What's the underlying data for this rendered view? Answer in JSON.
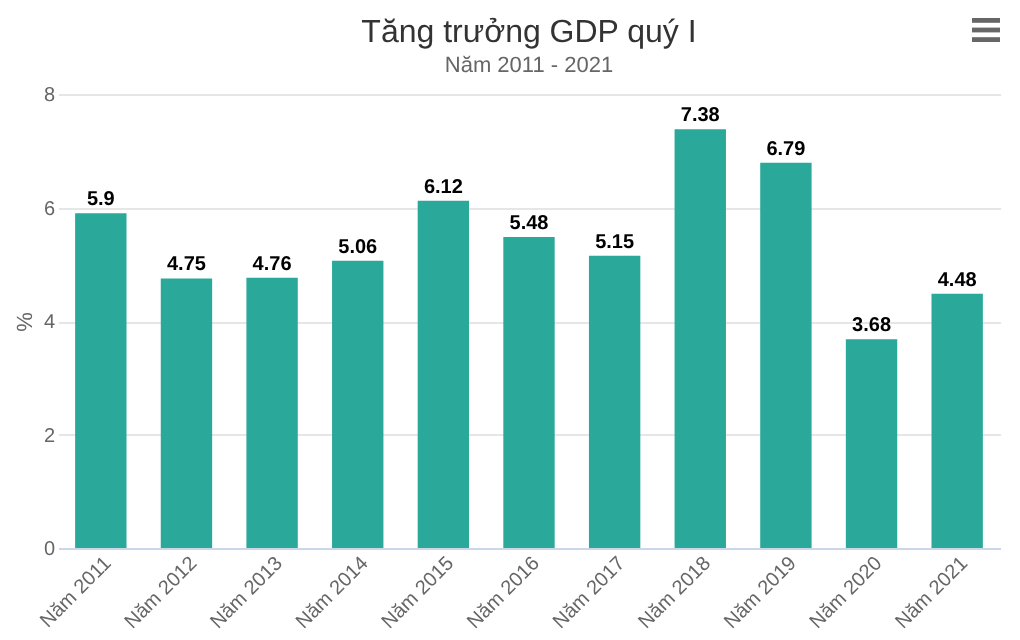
{
  "chart_data": {
    "type": "bar",
    "title": "Tăng trưởng GDP quý I",
    "subtitle": "Năm 2011 - 2021",
    "ylabel": "%",
    "categories": [
      "Năm 2011",
      "Năm 2012",
      "Năm 2013",
      "Năm 2014",
      "Năm 2015",
      "Năm 2016",
      "Năm 2017",
      "Năm 2018",
      "Năm 2019",
      "Năm 2020",
      "Năm 2021"
    ],
    "values": [
      5.9,
      4.75,
      4.76,
      5.06,
      6.12,
      5.48,
      5.15,
      7.38,
      6.79,
      3.68,
      4.48
    ],
    "color": "#2aa99b",
    "ylim": [
      0,
      8
    ],
    "yticks": [
      0,
      2,
      4,
      6,
      8
    ],
    "grid": "y",
    "data_labels": true
  }
}
